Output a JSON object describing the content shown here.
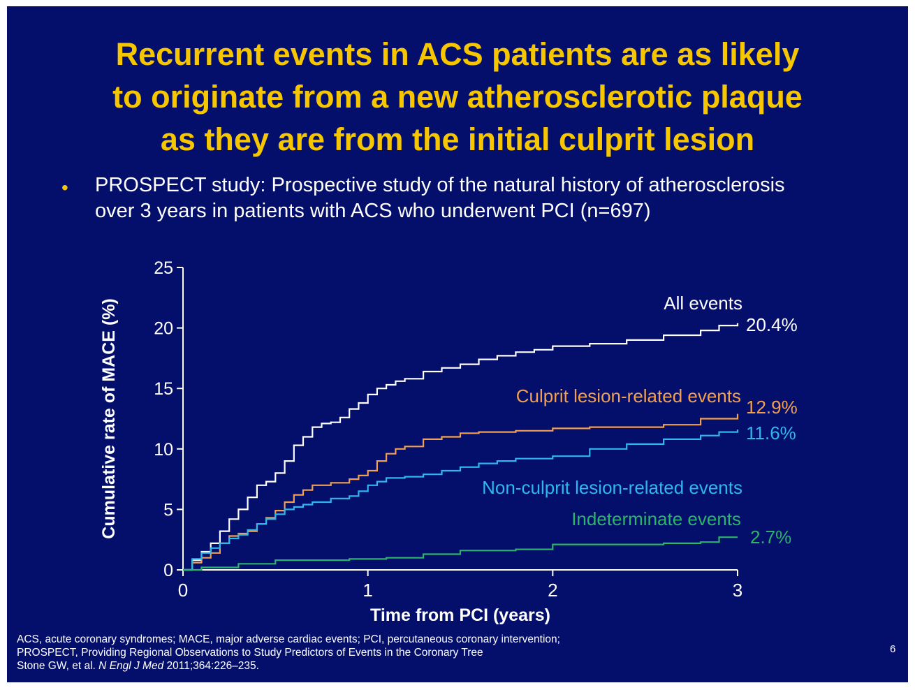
{
  "slide": {
    "title_lines": [
      "Recurrent events in ACS patients are as likely",
      "to originate from a new atherosclerotic plaque",
      "as they are from the initial culprit lesion"
    ],
    "bullet_marker": "•",
    "bullet_lines": [
      "PROSPECT study: Prospective study of the natural history of atherosclerosis",
      "over 3 years in patients with ACS who underwent PCI (n=697)"
    ],
    "footnote": {
      "line1": "ACS, acute coronary syndromes; MACE, major adverse cardiac events; PCI, percutaneous coronary intervention;",
      "line2": "PROSPECT, Providing Regional Observations to Study Predictors of Events in the Coronary Tree",
      "line3_prefix": "Stone GW, et al. ",
      "line3_journal": "N Engl J Med",
      "line3_suffix": " 2011;364:226–235."
    },
    "page_number": "6",
    "colors": {
      "background": "#040f6c",
      "title": "#f6c600",
      "all_events": "#ffffff",
      "culprit": "#f0a050",
      "non_culprit": "#2fb6ee",
      "indeterminate": "#2db36a"
    }
  },
  "chart_data": {
    "type": "line",
    "step": true,
    "xlabel": "Time from PCI (years)",
    "ylabel": "Cumulative rate of MACE (%)",
    "xlim": [
      0,
      3
    ],
    "ylim": [
      0,
      25
    ],
    "xticks": [
      0,
      1,
      2,
      3
    ],
    "yticks": [
      0,
      5,
      10,
      15,
      20,
      25
    ],
    "grid": false,
    "series": [
      {
        "name": "All events",
        "end_label": "20.4%",
        "color": "#ffffff",
        "x": [
          0,
          0.05,
          0.1,
          0.15,
          0.2,
          0.25,
          0.3,
          0.35,
          0.4,
          0.45,
          0.5,
          0.55,
          0.6,
          0.65,
          0.7,
          0.75,
          0.8,
          0.85,
          0.9,
          0.95,
          1.0,
          1.05,
          1.1,
          1.15,
          1.2,
          1.3,
          1.4,
          1.5,
          1.6,
          1.7,
          1.8,
          1.9,
          2.0,
          2.2,
          2.4,
          2.6,
          2.8,
          2.9,
          3.0
        ],
        "y": [
          0,
          0.8,
          1.5,
          2.2,
          3.2,
          4.2,
          5.0,
          6.0,
          7.0,
          7.3,
          8.0,
          9.0,
          10.3,
          11.0,
          11.8,
          12.1,
          12.2,
          12.6,
          13.3,
          13.8,
          14.5,
          15.0,
          15.3,
          15.6,
          15.8,
          16.4,
          16.7,
          17.0,
          17.4,
          17.7,
          18.0,
          18.2,
          18.5,
          18.7,
          19.0,
          19.4,
          19.8,
          20.2,
          20.4
        ]
      },
      {
        "name": "Culprit lesion-related events",
        "end_label": "12.9%",
        "color": "#f0a050",
        "x": [
          0,
          0.05,
          0.1,
          0.15,
          0.2,
          0.25,
          0.3,
          0.35,
          0.4,
          0.45,
          0.5,
          0.55,
          0.6,
          0.65,
          0.7,
          0.8,
          0.9,
          0.95,
          1.0,
          1.05,
          1.1,
          1.15,
          1.2,
          1.3,
          1.4,
          1.5,
          1.6,
          1.8,
          2.0,
          2.2,
          2.4,
          2.6,
          2.8,
          3.0
        ],
        "y": [
          0,
          0.6,
          1.0,
          1.4,
          2.2,
          2.8,
          3.0,
          3.2,
          3.8,
          4.3,
          4.9,
          5.6,
          6.2,
          6.6,
          7.0,
          7.2,
          7.5,
          7.8,
          8.2,
          9.0,
          9.6,
          10.0,
          10.2,
          10.8,
          11.0,
          11.3,
          11.4,
          11.5,
          11.7,
          11.8,
          11.8,
          12.0,
          12.5,
          12.9
        ]
      },
      {
        "name": "Non-culprit lesion-related events",
        "end_label": "11.6%",
        "color": "#2fb6ee",
        "x": [
          0,
          0.05,
          0.1,
          0.15,
          0.2,
          0.25,
          0.3,
          0.35,
          0.4,
          0.45,
          0.5,
          0.55,
          0.6,
          0.65,
          0.7,
          0.8,
          0.9,
          0.95,
          1.0,
          1.05,
          1.1,
          1.2,
          1.3,
          1.4,
          1.5,
          1.6,
          1.7,
          1.8,
          2.0,
          2.2,
          2.4,
          2.6,
          2.8,
          2.9,
          3.0
        ],
        "y": [
          0,
          0.9,
          1.4,
          1.8,
          2.2,
          2.6,
          2.9,
          3.3,
          3.8,
          4.2,
          4.6,
          5.0,
          5.2,
          5.4,
          5.6,
          5.9,
          6.1,
          6.5,
          7.0,
          7.3,
          7.6,
          7.7,
          7.9,
          8.2,
          8.5,
          8.8,
          9.0,
          9.2,
          9.4,
          10.0,
          10.4,
          10.8,
          11.1,
          11.4,
          11.6
        ]
      },
      {
        "name": "Indeterminate events",
        "end_label": "2.7%",
        "color": "#2db36a",
        "x": [
          0,
          0.1,
          0.3,
          0.5,
          0.7,
          0.9,
          1.1,
          1.3,
          1.5,
          1.8,
          2.0,
          2.3,
          2.6,
          2.8,
          2.9,
          3.0
        ],
        "y": [
          0,
          0.2,
          0.5,
          0.8,
          0.8,
          0.9,
          1.0,
          1.3,
          1.6,
          1.7,
          2.1,
          2.1,
          2.2,
          2.3,
          2.7,
          2.7
        ]
      }
    ]
  }
}
